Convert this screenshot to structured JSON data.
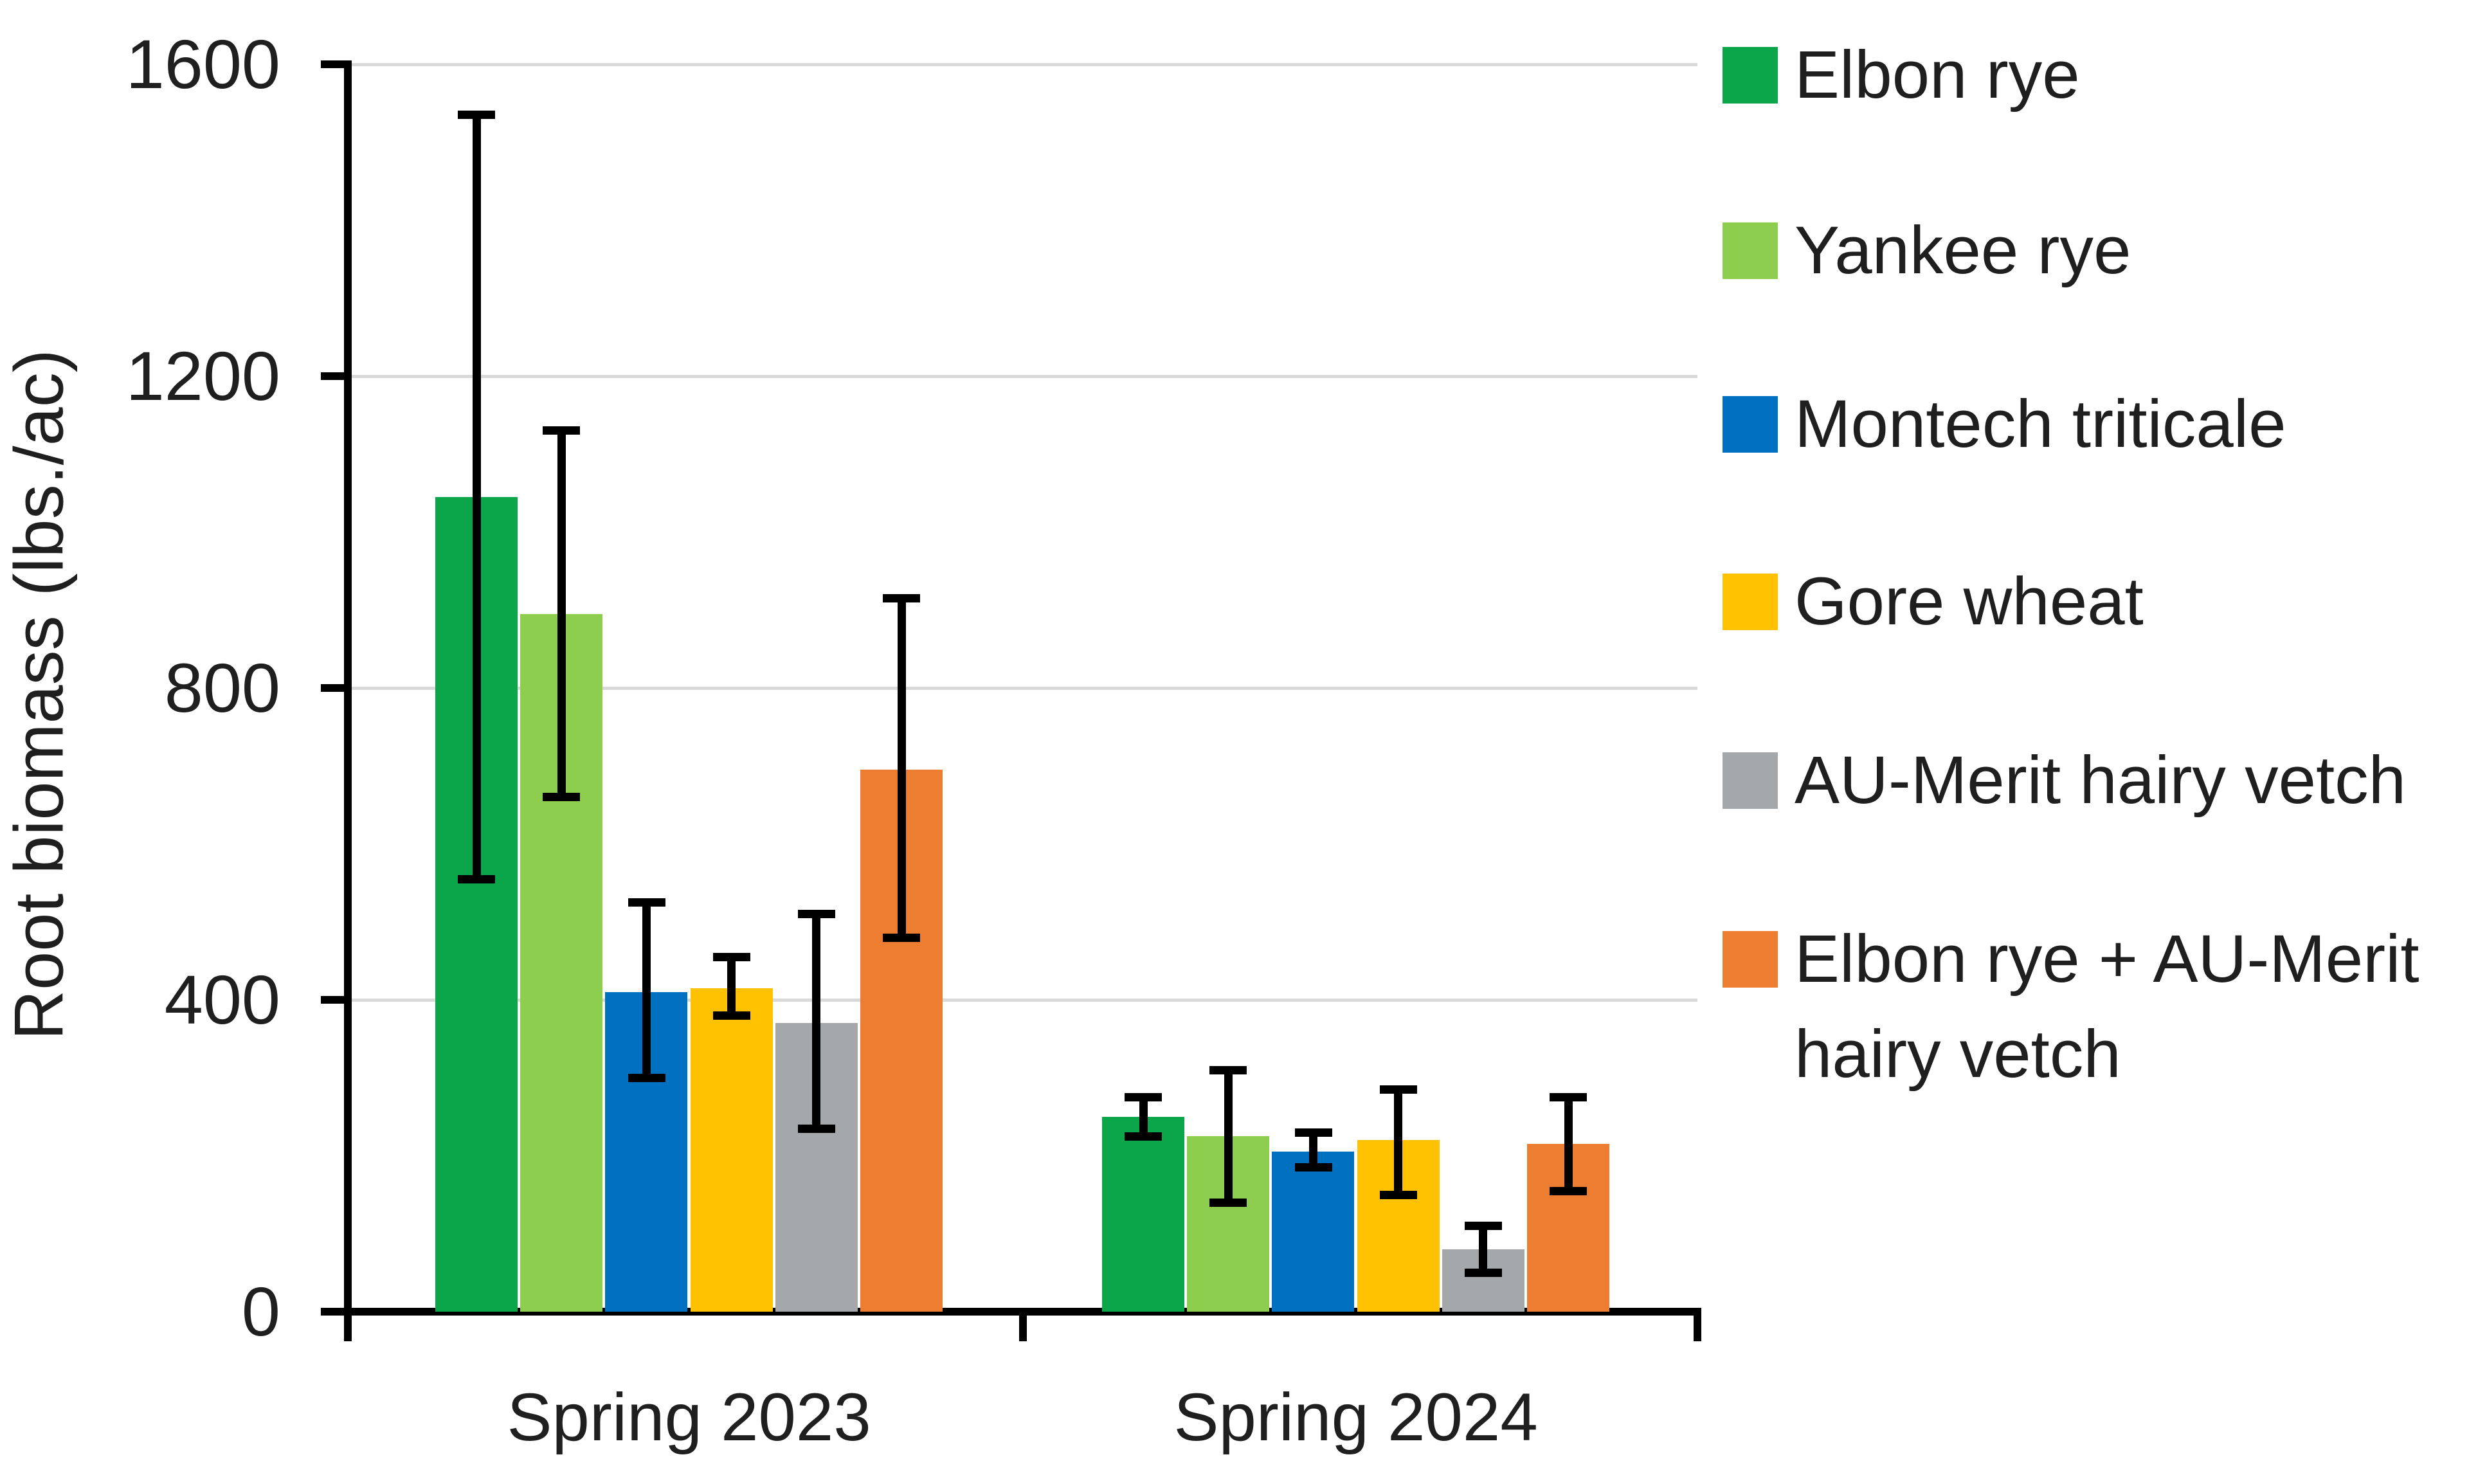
{
  "chart_data": {
    "type": "bar",
    "title": "",
    "categories": [
      "Spring 2023",
      "Spring 2024"
    ],
    "series": [
      {
        "name": "Elbon rye",
        "color": "#0ca64a",
        "values": [
          1045,
          250
        ],
        "error_low": [
          555,
          225
        ],
        "error_high": [
          1535,
          275
        ]
      },
      {
        "name": "Yankee rye",
        "color": "#8dce4f",
        "values": [
          895,
          225
        ],
        "error_low": [
          660,
          140
        ],
        "error_high": [
          1130,
          310
        ]
      },
      {
        "name": "Montech triticale",
        "color": "#0070c0",
        "values": [
          410,
          205
        ],
        "error_low": [
          300,
          185
        ],
        "error_high": [
          525,
          230
        ]
      },
      {
        "name": "Gore wheat",
        "color": "#ffc100",
        "values": [
          415,
          220
        ],
        "error_low": [
          380,
          150
        ],
        "error_high": [
          455,
          285
        ]
      },
      {
        "name": "AU-Merit hairy vetch",
        "color": "#a5a8aa",
        "values": [
          370,
          80
        ],
        "error_low": [
          235,
          50
        ],
        "error_high": [
          510,
          110
        ]
      },
      {
        "name": "Elbon rye + AU-Merit hairy vetch",
        "color": "#ec7d31",
        "values": [
          695,
          215
        ],
        "error_low": [
          480,
          155
        ],
        "error_high": [
          915,
          275
        ]
      }
    ],
    "xlabel": "",
    "ylabel": "Root biomass (lbs./ac)",
    "ylim": [
      0,
      1600
    ],
    "yticks": [
      0,
      400,
      800,
      1200,
      1600
    ],
    "grid": true,
    "error_bars": true,
    "legend_position": "right",
    "gridline_color": "#d9d9d9",
    "axis_color": "#000000",
    "text_color": "#1f1f1f"
  }
}
